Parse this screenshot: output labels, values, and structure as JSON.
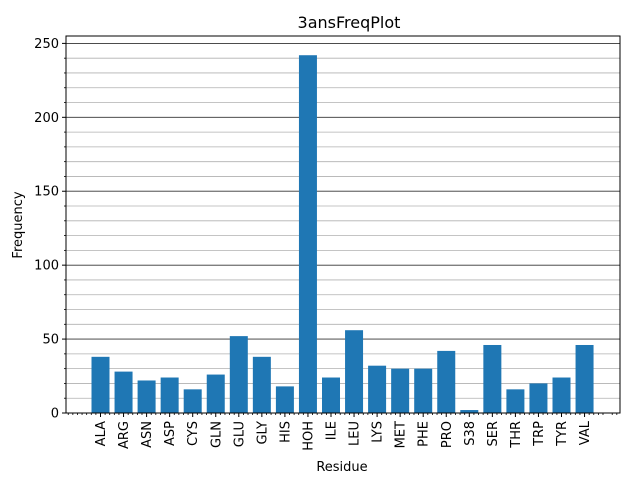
{
  "chart_data": {
    "type": "bar",
    "title": "3ansFreqPlot",
    "xlabel": "Residue",
    "ylabel": "Frequency",
    "categories": [
      "ALA",
      "ARG",
      "ASN",
      "ASP",
      "CYS",
      "GLN",
      "GLU",
      "GLY",
      "HIS",
      "HOH",
      "ILE",
      "LEU",
      "LYS",
      "MET",
      "PHE",
      "PRO",
      "S38",
      "SER",
      "THR",
      "TRP",
      "TYR",
      "VAL"
    ],
    "values": [
      38,
      28,
      22,
      24,
      16,
      26,
      52,
      38,
      18,
      242,
      24,
      56,
      32,
      30,
      30,
      42,
      2,
      46,
      16,
      20,
      24,
      46
    ],
    "ylim": [
      0,
      255
    ],
    "yticks": [
      0,
      50,
      100,
      150,
      200,
      250
    ],
    "grid": true,
    "bar_color": "#1f77b4"
  }
}
